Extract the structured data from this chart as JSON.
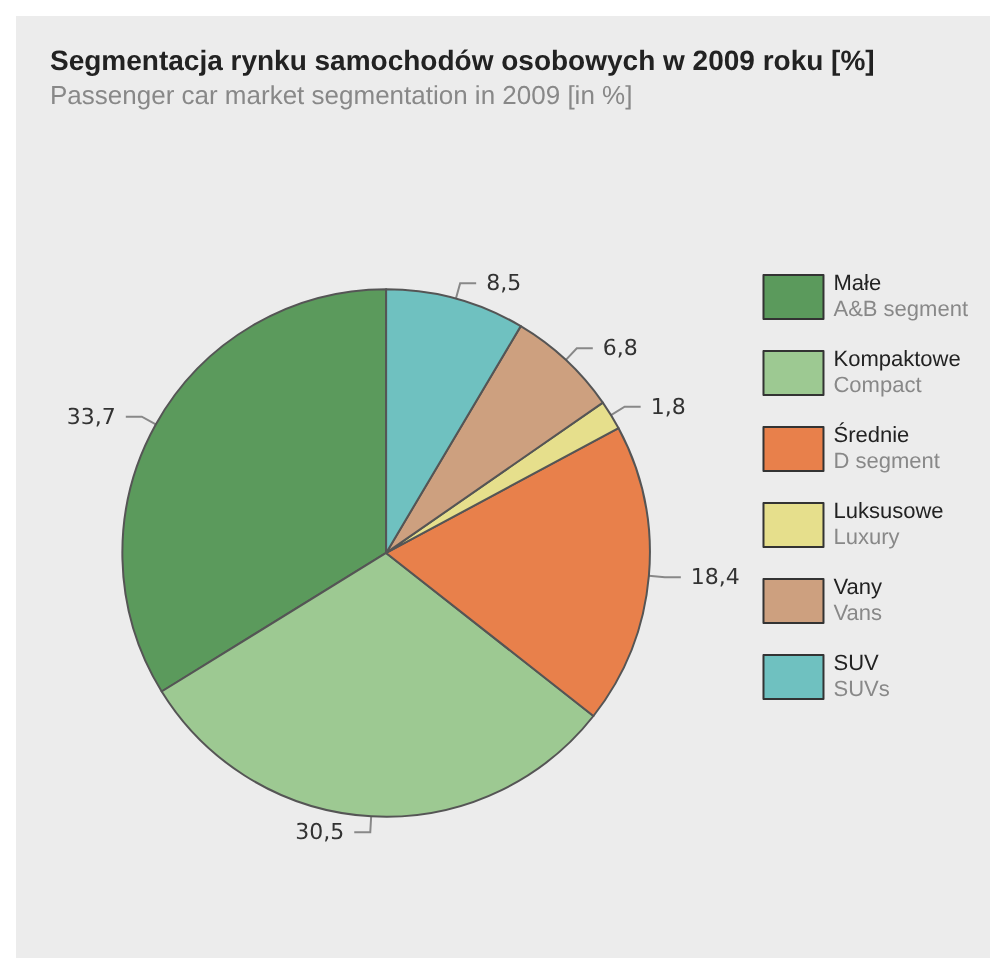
{
  "chart_data": {
    "type": "pie",
    "title": "Segmentacja rynku samochodów osobowych w 2009 roku [%]",
    "subtitle": "Passenger car market segmentation in 2009 [in %]",
    "categories": [
      "Małe\nA&B segment",
      "Kompaktowe\nCompact",
      "Średnie\nD segment",
      "Luksusowe\nLuxury",
      "Vany\nVans",
      "SUV\nSUVs"
    ],
    "values": [
      33.7,
      30.5,
      18.4,
      1.8,
      6.8,
      8.5
    ],
    "value_labels": [
      "33,7",
      "30,5",
      "18,4",
      "1,8",
      "6,8",
      "8,5"
    ],
    "colors": [
      "#5b9a5c",
      "#9dc992",
      "#e8804b",
      "#e6df8c",
      "#cda07f",
      "#6fc1c0"
    ],
    "legend": "right"
  }
}
